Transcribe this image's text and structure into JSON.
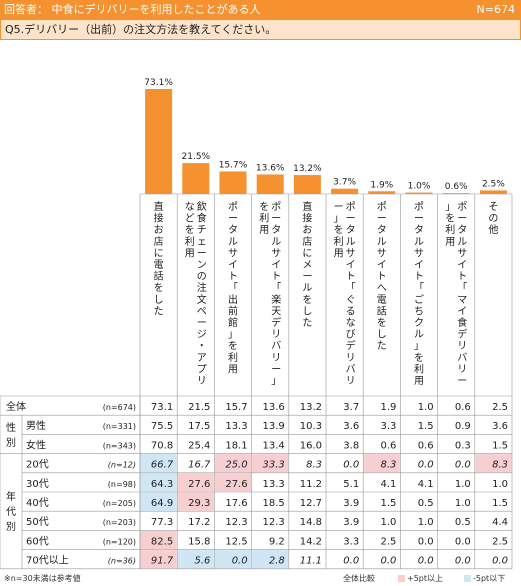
{
  "header": {
    "respondents": "回答者： 中食にデリバリーを利用したことがある人",
    "n_total": "N=674"
  },
  "question": "Q5.デリバリー（出前）の注文方法を教えてください。",
  "chart_data": {
    "type": "bar",
    "categories": [
      "直接お店に電話をした",
      "飲食チェーンの注文ページ・アプリなどを利用",
      "ポータルサイト「出前館」を利用",
      "ポータルサイト「楽天デリバリー」を利用",
      "直接お店にメールをした",
      "ポータルサイト「ぐるなびデリバリー」を利用",
      "ポータルサイトへ電話をした",
      "ポータルサイト「ごちクル」を利用",
      "ポータルサイト「マイ食デリバリー」を利用",
      "その他"
    ],
    "values": [
      73.1,
      21.5,
      15.7,
      13.6,
      13.2,
      3.7,
      1.9,
      1.0,
      0.6,
      2.5
    ],
    "value_labels": [
      "73.1%",
      "21.5%",
      "15.7%",
      "13.6%",
      "13.2%",
      "3.7%",
      "1.9%",
      "1.0%",
      "0.6%",
      "2.5%"
    ],
    "bar_color": "#f5922f",
    "ylim": [
      0,
      73.1
    ]
  },
  "table": {
    "rows": [
      {
        "group": "",
        "label": "全体",
        "n": "(n=674)",
        "italic": false,
        "values": [
          "73.1",
          "21.5",
          "15.7",
          "13.6",
          "13.2",
          "3.7",
          "1.9",
          "1.0",
          "0.6",
          "2.5"
        ],
        "marks": [
          "",
          "",
          "",
          "",
          "",
          "",
          "",
          "",
          "",
          ""
        ]
      },
      {
        "group": "gender",
        "label": "男性",
        "n": "(n=331)",
        "italic": false,
        "values": [
          "75.5",
          "17.5",
          "13.3",
          "13.9",
          "10.3",
          "3.6",
          "3.3",
          "1.5",
          "0.9",
          "3.6"
        ],
        "marks": [
          "",
          "",
          "",
          "",
          "",
          "",
          "",
          "",
          "",
          ""
        ]
      },
      {
        "group": "gender",
        "label": "女性",
        "n": "(n=343)",
        "italic": false,
        "values": [
          "70.8",
          "25.4",
          "18.1",
          "13.4",
          "16.0",
          "3.8",
          "0.6",
          "0.6",
          "0.3",
          "1.5"
        ],
        "marks": [
          "",
          "",
          "",
          "",
          "",
          "",
          "",
          "",
          "",
          ""
        ]
      },
      {
        "group": "age",
        "label": "20代",
        "n": "(n=12)",
        "italic": true,
        "values": [
          "66.7",
          "16.7",
          "25.0",
          "33.3",
          "8.3",
          "0.0",
          "8.3",
          "0.0",
          "0.0",
          "8.3"
        ],
        "marks": [
          "low",
          "",
          "high",
          "high",
          "",
          "",
          "high",
          "",
          "",
          "high"
        ]
      },
      {
        "group": "age",
        "label": "30代",
        "n": "(n=98)",
        "italic": false,
        "values": [
          "64.3",
          "27.6",
          "27.6",
          "13.3",
          "11.2",
          "5.1",
          "4.1",
          "4.1",
          "1.0",
          "1.0"
        ],
        "marks": [
          "low",
          "high",
          "high",
          "",
          "",
          "",
          "",
          "",
          "",
          ""
        ]
      },
      {
        "group": "age",
        "label": "40代",
        "n": "(n=205)",
        "italic": false,
        "values": [
          "64.9",
          "29.3",
          "17.6",
          "18.5",
          "12.7",
          "3.9",
          "1.5",
          "0.5",
          "1.0",
          "1.5"
        ],
        "marks": [
          "low",
          "high",
          "",
          "",
          "",
          "",
          "",
          "",
          "",
          ""
        ]
      },
      {
        "group": "age",
        "label": "50代",
        "n": "(n=203)",
        "italic": false,
        "values": [
          "77.3",
          "17.2",
          "12.3",
          "12.3",
          "14.8",
          "3.9",
          "1.0",
          "1.0",
          "0.5",
          "4.4"
        ],
        "marks": [
          "",
          "",
          "",
          "",
          "",
          "",
          "",
          "",
          "",
          ""
        ]
      },
      {
        "group": "age",
        "label": "60代",
        "n": "(n=120)",
        "italic": false,
        "values": [
          "82.5",
          "15.8",
          "12.5",
          "9.2",
          "14.2",
          "3.3",
          "2.5",
          "0.0",
          "0.0",
          "2.5"
        ],
        "marks": [
          "high",
          "",
          "",
          "",
          "",
          "",
          "",
          "",
          "",
          ""
        ]
      },
      {
        "group": "age",
        "label": "70代以上",
        "n": "(n=36)",
        "italic": true,
        "values": [
          "91.7",
          "5.6",
          "0.0",
          "2.8",
          "11.1",
          "0.0",
          "0.0",
          "0.0",
          "0.0",
          "0.0"
        ],
        "marks": [
          "high",
          "low",
          "low",
          "low",
          "",
          "",
          "",
          "",
          "",
          ""
        ]
      }
    ],
    "group_labels": {
      "gender": "性別",
      "age": "年代別"
    }
  },
  "colors": {
    "accent": "#f5922f",
    "question_bg": "#fde3c9",
    "high_fill": "#f7cfd1",
    "low_fill": "#cfe6f5",
    "grid": "#999999"
  },
  "footer": {
    "note": "※n=30未満は参考値",
    "legend_base": "全体比較",
    "legend_high": "+5pt以上",
    "legend_low": "-5pt以下"
  }
}
